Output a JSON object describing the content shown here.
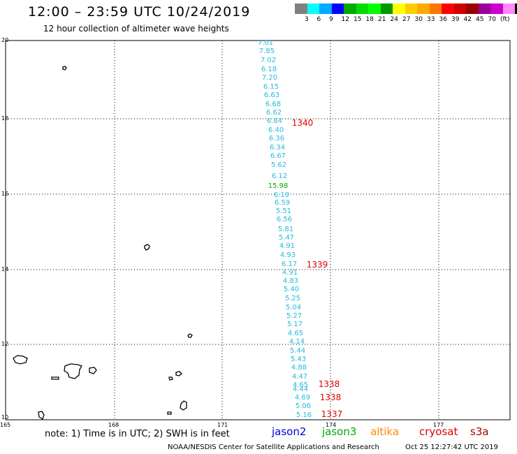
{
  "header": {
    "title": "12:00 – 23:59 UTC 10/24/2019",
    "subtitle": "12 hour collection of altimeter wave heights"
  },
  "legend": {
    "colors": [
      "#808080",
      "#00ffff",
      "#00aaff",
      "#0000ff",
      "#00aa00",
      "#00dd00",
      "#00ff00",
      "#009900",
      "#ffff00",
      "#ffcc00",
      "#ffaa00",
      "#ff7700",
      "#ff0000",
      "#cc0000",
      "#990000",
      "#990099",
      "#cc00cc",
      "#ff88ff",
      "#000000"
    ],
    "labels": [
      "3",
      "6",
      "9",
      "12",
      "15",
      "18",
      "21",
      "24",
      "27",
      "30",
      "33",
      "36",
      "39",
      "42",
      "45",
      "70",
      "(ft)"
    ]
  },
  "map": {
    "lat_labels": [
      "20",
      "18",
      "16",
      "14",
      "12",
      "10"
    ],
    "lon_labels": [
      "165",
      "168",
      "171",
      "174",
      "177"
    ],
    "islands": [
      "island-north",
      "island-mid",
      "island-south",
      "atoll-w1",
      "atoll-w2",
      "atoll-w3",
      "atoll-w4",
      "atoll-e1",
      "atoll-e2",
      "atoll-e3",
      "atoll-se1",
      "atoll-sw1"
    ]
  },
  "observations": {
    "wave_color": "#22bbdd",
    "jason3_color": "#00aa00",
    "marker_color": "#dd0000",
    "wave_heights": [
      {
        "text": "7.01",
        "sat": "s3a"
      },
      {
        "text": "7.85",
        "sat": "s3a"
      },
      {
        "text": "7.02",
        "sat": "s3a"
      },
      {
        "text": "6.18",
        "sat": "s3a"
      },
      {
        "text": "7.20",
        "sat": "s3a"
      },
      {
        "text": "6.15",
        "sat": "s3a"
      },
      {
        "text": "6.63",
        "sat": "s3a"
      },
      {
        "text": "6.68",
        "sat": "s3a"
      },
      {
        "text": "6.62",
        "sat": "s3a"
      },
      {
        "text": "6.84",
        "sat": "s3a"
      },
      {
        "text": "6.40",
        "sat": "s3a"
      },
      {
        "text": "6.36",
        "sat": "s3a"
      },
      {
        "text": "6.34",
        "sat": "s3a"
      },
      {
        "text": "6.67",
        "sat": "s3a"
      },
      {
        "text": "5.62",
        "sat": "s3a"
      },
      {
        "text": "6.12",
        "sat": "s3a"
      },
      {
        "text": "15.98",
        "sat": "jason3"
      },
      {
        "text": "6.19",
        "sat": "s3a"
      },
      {
        "text": "6.59",
        "sat": "s3a"
      },
      {
        "text": "5.51",
        "sat": "s3a"
      },
      {
        "text": "6.56",
        "sat": "s3a"
      },
      {
        "text": "5.81",
        "sat": "s3a"
      },
      {
        "text": "5.47",
        "sat": "s3a"
      },
      {
        "text": "4.91",
        "sat": "s3a"
      },
      {
        "text": "4.93",
        "sat": "s3a"
      },
      {
        "text": "6.17",
        "sat": "s3a"
      },
      {
        "text": "4.91",
        "sat": "s3a"
      },
      {
        "text": "4.83",
        "sat": "s3a"
      },
      {
        "text": "5.40",
        "sat": "s3a"
      },
      {
        "text": "5.25",
        "sat": "s3a"
      },
      {
        "text": "5.04",
        "sat": "s3a"
      },
      {
        "text": "5.27",
        "sat": "s3a"
      },
      {
        "text": "5.17",
        "sat": "s3a"
      },
      {
        "text": "4.65",
        "sat": "s3a"
      },
      {
        "text": "4.14",
        "sat": "s3a"
      },
      {
        "text": "5.44",
        "sat": "s3a"
      },
      {
        "text": "5.43",
        "sat": "s3a"
      },
      {
        "text": "4.88",
        "sat": "s3a"
      },
      {
        "text": "4.47",
        "sat": "s3a"
      },
      {
        "text": "4.65",
        "sat": "s3a"
      },
      {
        "text": "4.44",
        "sat": "s3a"
      },
      {
        "text": "4.69",
        "sat": "s3a"
      },
      {
        "text": "5.06",
        "sat": "s3a"
      },
      {
        "text": "5.16",
        "sat": "s3a"
      }
    ],
    "time_markers": [
      "1340",
      "1339",
      "1338",
      "1338",
      "1337"
    ]
  },
  "footer": {
    "note": "note: 1) Time is in UTC; 2) SWH is in feet",
    "satellites": [
      {
        "name": "jason2",
        "color": "#0000dd"
      },
      {
        "name": "jason3",
        "color": "#00aa00"
      },
      {
        "name": "altika",
        "color": "#ff8800"
      },
      {
        "name": "cryosat",
        "color": "#dd0000"
      },
      {
        "name": "s3a",
        "color": "#aa0000"
      }
    ],
    "credit": "NOAA/NESDIS Center for Satellite Applications and Research",
    "timestamp": "Oct 25 12:27:42 UTC 2019"
  }
}
